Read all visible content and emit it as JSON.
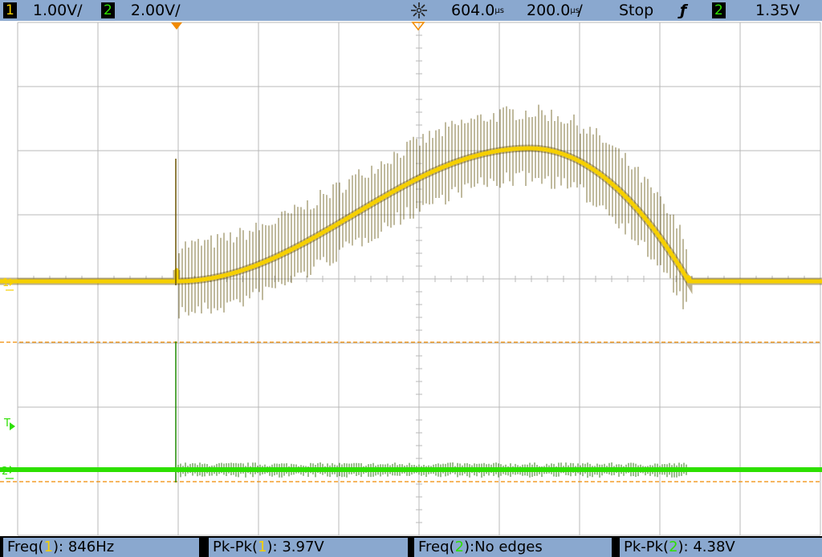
{
  "top_bar": {
    "ch1": {
      "number": "1",
      "scale": "1.00V/"
    },
    "ch2": {
      "number": "2",
      "scale": "2.00V/"
    },
    "horizontal_position": "604.0",
    "horizontal_position_unit": "us",
    "time_per_div": "200.0",
    "time_per_div_unit": "us",
    "time_per_div_suffix": "/",
    "run_state": "Stop",
    "trigger_slope_symbol": "ƒ",
    "trigger_source": "2",
    "trigger_level": "1.35V"
  },
  "markers": {
    "ch1_marker": "1",
    "ch2_marker": "2",
    "trigger_marker": "T"
  },
  "measurements": [
    {
      "label": "Freq(",
      "channel": "1",
      "suffix": "): 846Hz"
    },
    {
      "label": "Pk-Pk(",
      "channel": "1",
      "suffix": "): 3.97V"
    },
    {
      "label": "Freq(",
      "channel": "2",
      "suffix": "):No edges"
    },
    {
      "label": "Pk-Pk(",
      "channel": "2",
      "suffix": "): 4.38V"
    }
  ],
  "colors": {
    "ch1": "#f6d000",
    "ch2": "#2de000",
    "grid": "#b9b9b9",
    "marker_orange": "#f08a00"
  },
  "icons": {
    "acquisition": "sunburst-icon",
    "trigger_slope": "falling-edge-icon"
  }
}
